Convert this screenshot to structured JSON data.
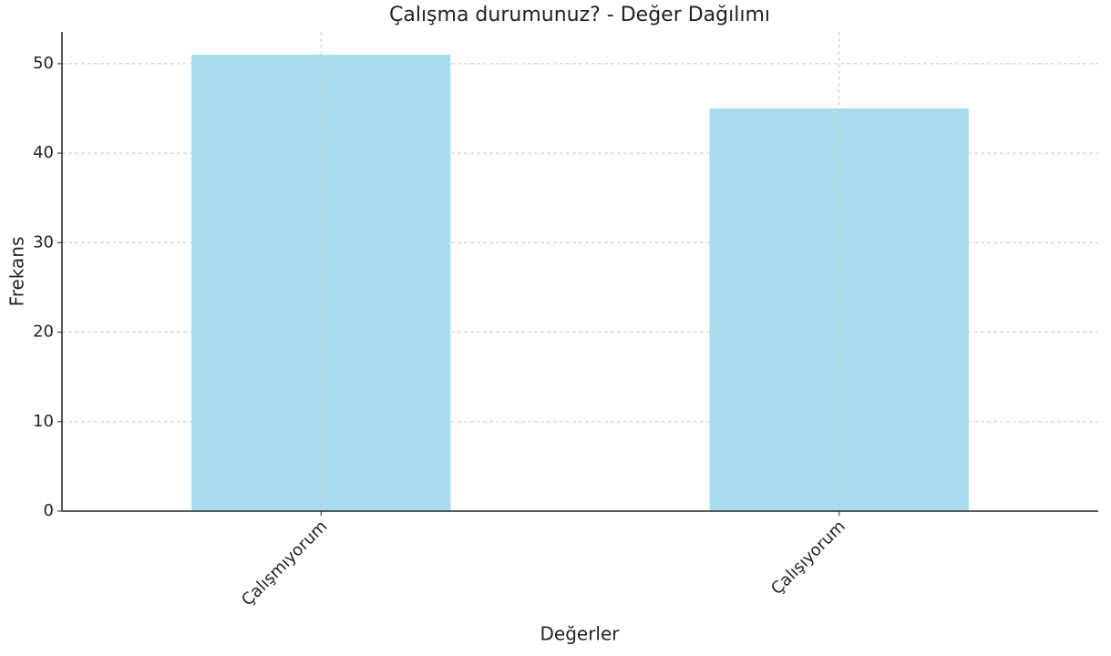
{
  "chart_data": {
    "type": "bar",
    "title": "Çalışma durumunuz? - Değer Dağılımı",
    "x_label": "Değerler",
    "y_label": "Frekans",
    "categories": [
      "Çalışmıyorum",
      "Çalışıyorum"
    ],
    "values": [
      51,
      45
    ],
    "color": "#a8dbec",
    "ylim": [
      0,
      53.55
    ],
    "yticks": [
      0,
      10,
      20,
      30,
      40,
      50
    ],
    "grid": true
  }
}
